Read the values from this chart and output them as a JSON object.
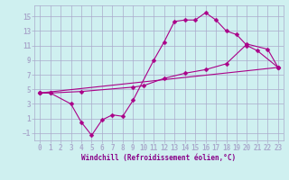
{
  "xlabel": "Windchill (Refroidissement éolien,°C)",
  "bg_color": "#cff0f0",
  "grid_color": "#aaaacc",
  "line_color": "#aa0088",
  "xlim": [
    -0.5,
    23.5
  ],
  "ylim": [
    -2,
    16.5
  ],
  "xticks": [
    0,
    1,
    2,
    3,
    4,
    5,
    6,
    7,
    8,
    9,
    10,
    11,
    12,
    13,
    14,
    15,
    16,
    17,
    18,
    19,
    20,
    21,
    22,
    23
  ],
  "yticks": [
    -1,
    1,
    3,
    5,
    7,
    9,
    11,
    13,
    15
  ],
  "line1_x": [
    0,
    1,
    3,
    4,
    5,
    6,
    7,
    8,
    9,
    11,
    12,
    13,
    14,
    15,
    16,
    17,
    18,
    19,
    20,
    21,
    23
  ],
  "line1_y": [
    4.5,
    4.5,
    3.0,
    0.5,
    -1.3,
    0.8,
    1.5,
    1.3,
    3.5,
    9.0,
    11.5,
    14.3,
    14.5,
    14.5,
    15.5,
    14.5,
    13.0,
    12.5,
    11.0,
    10.3,
    8.0
  ],
  "line2_x": [
    0,
    1,
    4,
    9,
    10,
    12,
    14,
    16,
    18,
    20,
    22,
    23
  ],
  "line2_y": [
    4.5,
    4.5,
    4.7,
    5.3,
    5.5,
    6.5,
    7.2,
    7.7,
    8.5,
    11.2,
    10.5,
    8.0
  ],
  "line3_x": [
    0,
    23
  ],
  "line3_y": [
    4.5,
    8.0
  ]
}
